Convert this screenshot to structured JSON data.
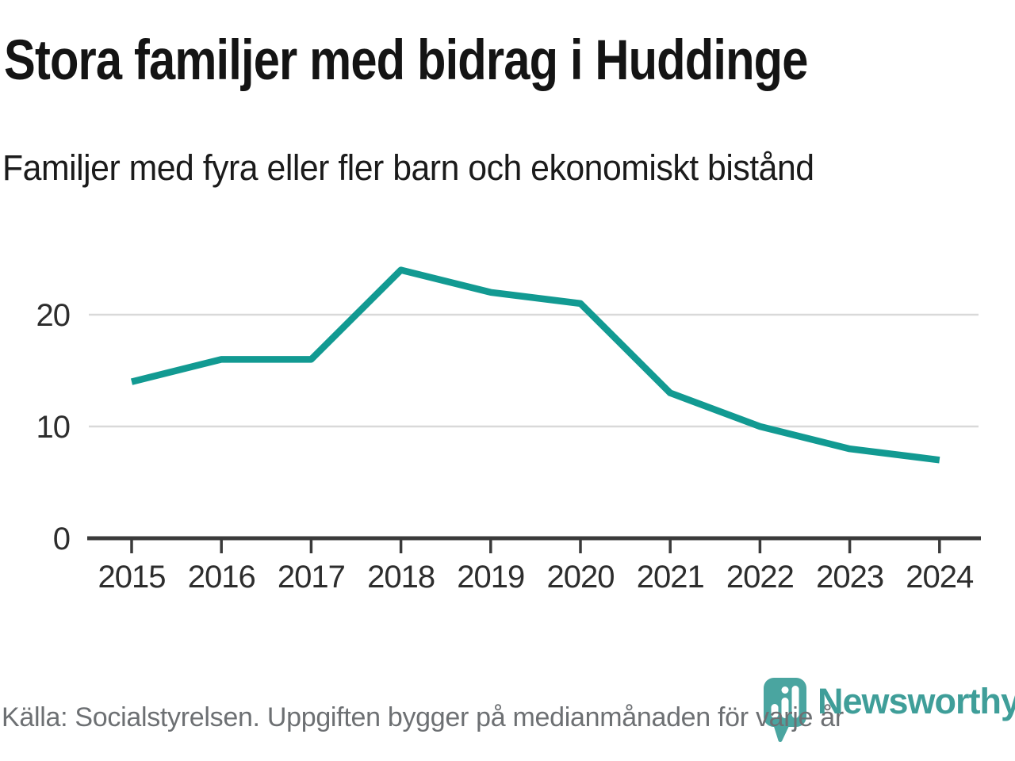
{
  "header": {
    "title": "Stora familjer med bidrag i Huddinge",
    "subtitle": "Familjer med fyra eller fler barn och ekonomiskt bistånd"
  },
  "footer": {
    "source": "Källa: Socialstyrelsen. Uppgiften bygger på medianmånaden för varje år",
    "brand": "Newsworthy",
    "logo_icon": "newsworthy-pin-icon"
  },
  "colors": {
    "line": "#129a92",
    "grid": "#d9d9d9",
    "axis": "#3a3a3a",
    "axis_text": "#2d2d2d",
    "title_text": "#141414",
    "muted_text": "#6d7073",
    "brand_teal": "#3f9e99",
    "pin_teal": "#4aa5a0"
  },
  "chart_data": {
    "type": "line",
    "title": "Stora familjer med bidrag i Huddinge",
    "subtitle": "Familjer med fyra eller fler barn och ekonomiskt bistånd",
    "categories": [
      "2015",
      "2016",
      "2017",
      "2018",
      "2019",
      "2020",
      "2021",
      "2022",
      "2023",
      "2024"
    ],
    "series": [
      {
        "name": "Familjer med fyra eller fler barn och ekonomiskt bistånd",
        "values": [
          14,
          16,
          16,
          24,
          22,
          21,
          13,
          10,
          8,
          7
        ]
      }
    ],
    "xlabel": "",
    "ylabel": "",
    "yticks": [
      0,
      10,
      20
    ],
    "ylim": [
      0,
      25.5
    ],
    "grid": "horizontal",
    "legend": "none"
  }
}
